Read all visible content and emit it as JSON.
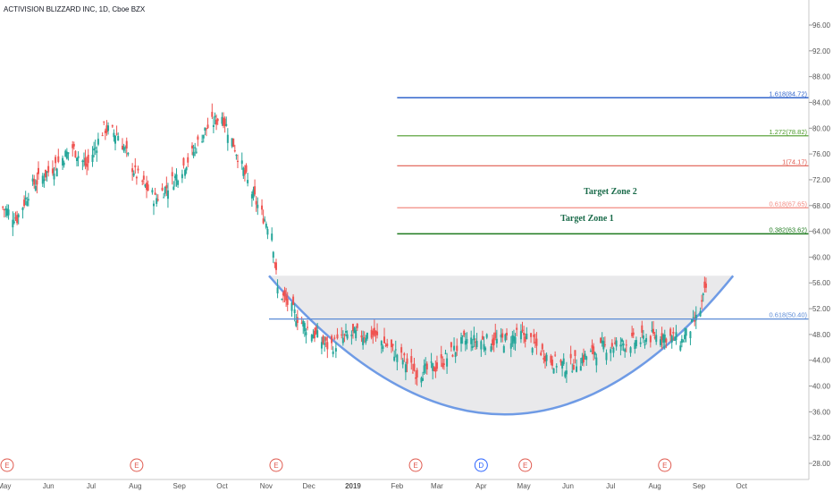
{
  "header": {
    "title": "ACTIVISION BLIZZARD INC, 1D, Cboe BZX"
  },
  "colors": {
    "up": "#26a69a",
    "down": "#ef5350",
    "fib_1618": "#3366cc",
    "fib_1272": "#4c9a2a",
    "fib_1": "#e05a4f",
    "fib_0618": "#f28b82",
    "fib_0382": "#1e7a1e",
    "fib_base": "#5b8bd6",
    "cup": "#6f9be5",
    "cup_fill": "#e3e3e6",
    "zone": "#1a6b4a"
  },
  "annotations": {
    "fib_levels": [
      {
        "label": "1.618(84.72)",
        "value": 84.72,
        "color": "#3366cc",
        "x_start": "2019-02-01"
      },
      {
        "label": "1.272(78.82)",
        "value": 78.82,
        "color": "#4c9a2a",
        "x_start": "2019-02-01"
      },
      {
        "label": "1(74.17)",
        "value": 74.17,
        "color": "#e05a4f",
        "x_start": "2019-02-01"
      },
      {
        "label": "0.618(67.65)",
        "value": 67.65,
        "color": "#f28b82",
        "x_start": "2019-02-01"
      },
      {
        "label": "0.382(63.62)",
        "value": 63.62,
        "color": "#1e7a1e",
        "x_start": "2019-02-01"
      },
      {
        "label": "0.618(50.40)",
        "value": 50.4,
        "color": "#5b8bd6",
        "x_start": "2018-11-03"
      }
    ],
    "target_zone_2": "Target Zone 2",
    "target_zone_1": "Target Zone 1",
    "events": [
      {
        "label": "E",
        "date": "2018-05-03",
        "color": "#e05a4f"
      },
      {
        "label": "E",
        "date": "2018-08-02",
        "color": "#e05a4f"
      },
      {
        "label": "E",
        "date": "2018-11-08",
        "color": "#e05a4f"
      },
      {
        "label": "E",
        "date": "2019-02-14",
        "color": "#e05a4f"
      },
      {
        "label": "D",
        "date": "2019-04-01",
        "color": "#2962ff"
      },
      {
        "label": "E",
        "date": "2019-05-02",
        "color": "#e05a4f"
      },
      {
        "label": "E",
        "date": "2019-08-08",
        "color": "#e05a4f"
      }
    ]
  },
  "chart_data": {
    "type": "candlestick",
    "title": "ACTIVISION BLIZZARD INC, 1D, Cboe BZX",
    "xlim": [
      "2018-04-28",
      "2019-10-25"
    ],
    "ylim": [
      26,
      100
    ],
    "y_ticks": [
      "28.00",
      "32.00",
      "36.00",
      "40.00",
      "44.00",
      "48.00",
      "52.00",
      "56.00",
      "60.00",
      "64.00",
      "68.00",
      "72.00",
      "76.00",
      "80.00",
      "84.00",
      "88.00",
      "92.00",
      "96.00"
    ],
    "x_ticks": [
      {
        "label": "May",
        "date": "2018-05-01"
      },
      {
        "label": "Jun",
        "date": "2018-06-01"
      },
      {
        "label": "Jul",
        "date": "2018-07-01"
      },
      {
        "label": "Aug",
        "date": "2018-08-01"
      },
      {
        "label": "Sep",
        "date": "2018-09-01"
      },
      {
        "label": "Oct",
        "date": "2018-10-01"
      },
      {
        "label": "Nov",
        "date": "2018-11-01"
      },
      {
        "label": "Dec",
        "date": "2018-12-01"
      },
      {
        "label": "2019",
        "date": "2019-01-01"
      },
      {
        "label": "Feb",
        "date": "2019-02-01"
      },
      {
        "label": "Mar",
        "date": "2019-03-01"
      },
      {
        "label": "Apr",
        "date": "2019-04-01"
      },
      {
        "label": "May",
        "date": "2019-05-01"
      },
      {
        "label": "Jun",
        "date": "2019-06-01"
      },
      {
        "label": "Jul",
        "date": "2019-07-01"
      },
      {
        "label": "Aug",
        "date": "2019-08-01"
      },
      {
        "label": "Sep",
        "date": "2019-09-01"
      },
      {
        "label": "Oct",
        "date": "2019-10-01"
      }
    ],
    "close_series": [
      {
        "date": "2018-04-28",
        "close": 68
      },
      {
        "date": "2018-05-10",
        "close": 66
      },
      {
        "date": "2018-05-20",
        "close": 71
      },
      {
        "date": "2018-06-05",
        "close": 74
      },
      {
        "date": "2018-06-18",
        "close": 77
      },
      {
        "date": "2018-06-28",
        "close": 74
      },
      {
        "date": "2018-07-10",
        "close": 80
      },
      {
        "date": "2018-07-20",
        "close": 79
      },
      {
        "date": "2018-08-01",
        "close": 73
      },
      {
        "date": "2018-08-15",
        "close": 69
      },
      {
        "date": "2018-08-28",
        "close": 72
      },
      {
        "date": "2018-09-10",
        "close": 76
      },
      {
        "date": "2018-09-20",
        "close": 80
      },
      {
        "date": "2018-10-01",
        "close": 82
      },
      {
        "date": "2018-10-10",
        "close": 77
      },
      {
        "date": "2018-10-20",
        "close": 71
      },
      {
        "date": "2018-10-28",
        "close": 67
      },
      {
        "date": "2018-11-05",
        "close": 64
      },
      {
        "date": "2018-11-09",
        "close": 55
      },
      {
        "date": "2018-11-25",
        "close": 50
      },
      {
        "date": "2018-12-15",
        "close": 46
      },
      {
        "date": "2018-12-30",
        "close": 48
      },
      {
        "date": "2019-01-15",
        "close": 48
      },
      {
        "date": "2019-02-01",
        "close": 45
      },
      {
        "date": "2019-02-15",
        "close": 42
      },
      {
        "date": "2019-03-01",
        "close": 43
      },
      {
        "date": "2019-03-20",
        "close": 47
      },
      {
        "date": "2019-04-15",
        "close": 47
      },
      {
        "date": "2019-05-01",
        "close": 48
      },
      {
        "date": "2019-05-20",
        "close": 44
      },
      {
        "date": "2019-06-01",
        "close": 43
      },
      {
        "date": "2019-06-25",
        "close": 46
      },
      {
        "date": "2019-07-20",
        "close": 47
      },
      {
        "date": "2019-08-05",
        "close": 48
      },
      {
        "date": "2019-08-20",
        "close": 47
      },
      {
        "date": "2019-09-01",
        "close": 51
      },
      {
        "date": "2019-09-07",
        "close": 56
      }
    ],
    "cup": {
      "rim_left": {
        "date": "2018-11-03",
        "value": 57.1
      },
      "bottom": {
        "date": "2019-04-20",
        "value": 35.6
      },
      "rim_right": {
        "date": "2019-09-25",
        "value": 57.1
      }
    }
  }
}
